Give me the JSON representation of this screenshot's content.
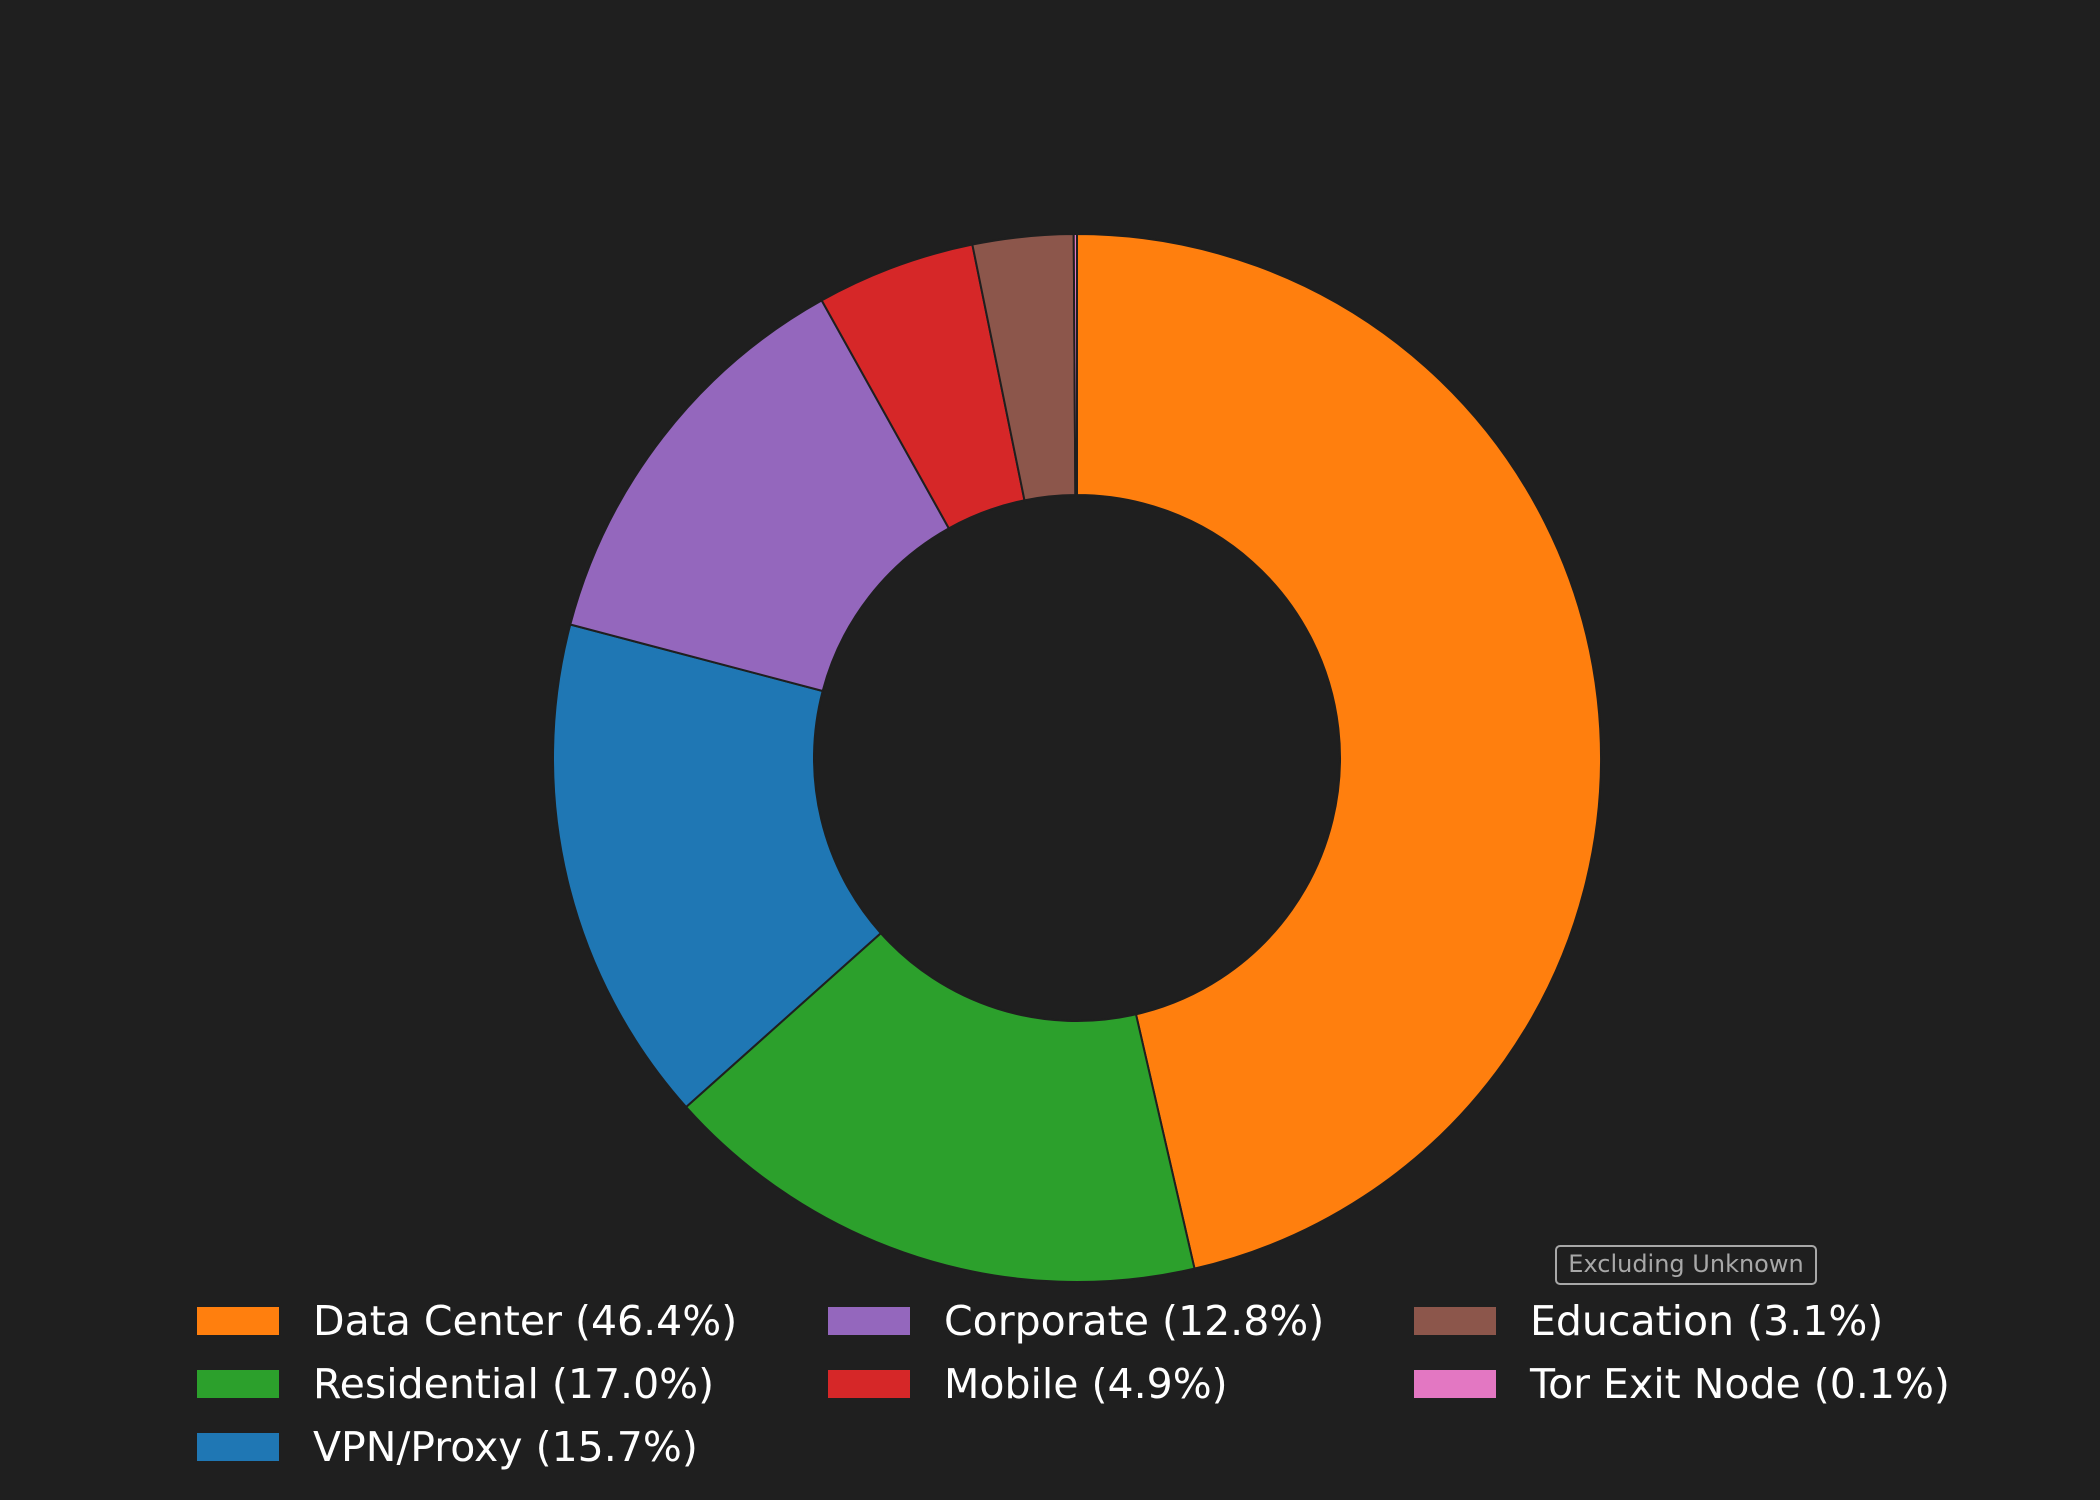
{
  "chart_data": {
    "type": "pie",
    "subtype": "donut",
    "start_angle_deg": 90,
    "direction": "clockwise",
    "slices": [
      {
        "label": "Data Center (46.4%)",
        "value": 46.4,
        "color": "#ff7f0e"
      },
      {
        "label": "Residential (17.0%)",
        "value": 17.0,
        "color": "#2ca02c"
      },
      {
        "label": "VPN/Proxy (15.7%)",
        "value": 15.7,
        "color": "#1f77b4"
      },
      {
        "label": "Corporate (12.8%)",
        "value": 12.8,
        "color": "#9467bd"
      },
      {
        "label": "Mobile (4.9%)",
        "value": 4.9,
        "color": "#d62728"
      },
      {
        "label": "Education (3.1%)",
        "value": 3.1,
        "color": "#8c564b"
      },
      {
        "label": "Tor Exit Node (0.1%)",
        "value": 0.1,
        "color": "#e377c2"
      }
    ],
    "legend": {
      "placement": "bottom",
      "columns": [
        [
          "Data Center (46.4%)",
          "Residential (17.0%)",
          "VPN/Proxy (15.7%)"
        ],
        [
          "Corporate (12.8%)",
          "Mobile (4.9%)"
        ],
        [
          "Education (3.1%)",
          "Tor Exit Node (0.1%)"
        ]
      ]
    },
    "annotation": "Excluding Unknown",
    "background": "#1f1f1f"
  }
}
